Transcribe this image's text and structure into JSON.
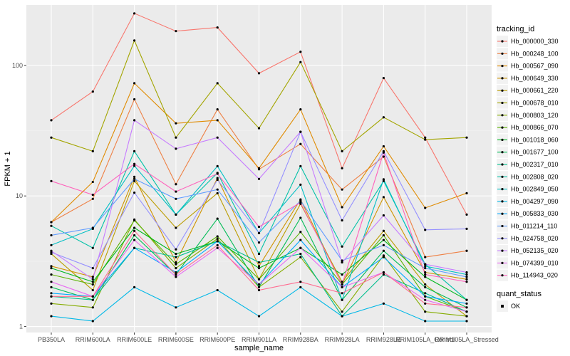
{
  "chart_data": {
    "type": "line",
    "xlabel": "sample_name",
    "ylabel": "FPKM + 1",
    "y_scale": "log10",
    "ylim": [
      0.9,
      290
    ],
    "y_ticks": [
      1,
      10,
      100
    ],
    "y_tick_labels": [
      "1",
      "10",
      "100"
    ],
    "categories": [
      "PB350LA",
      "RRIM600LA",
      "RRIM600LE",
      "RRIM600SE",
      "RRIM600PE",
      "RRIM901LA",
      "RRIM928BA",
      "RRIM928LA",
      "RRIM928LE",
      "RRIM105LA_Control",
      "RRIM105LA_Stressed"
    ],
    "legend_title": "tracking_id",
    "legend2_title": "quant_status",
    "legend2_entries": [
      "OK"
    ],
    "colors": {
      "panel_bg": "#ebebeb",
      "grid_major": "#ffffff",
      "grid_minor": "#f5f5f5",
      "point": "#000000"
    },
    "series": [
      {
        "name": "Hb_000000_330",
        "color": "#F8766D",
        "values": [
          38,
          63,
          250,
          183,
          195,
          87,
          127,
          16.3,
          80,
          28,
          7.2
        ]
      },
      {
        "name": "Hb_000248_100",
        "color": "#EE8044",
        "values": [
          6.3,
          9.5,
          55,
          12.3,
          46,
          16,
          25,
          11.2,
          20,
          3.4,
          3.8
        ]
      },
      {
        "name": "Hb_000567_090",
        "color": "#E08B00",
        "values": [
          6.3,
          12.8,
          73,
          36,
          38,
          16.3,
          46,
          8.2,
          24,
          8.1,
          10.5
        ]
      },
      {
        "name": "Hb_000649_330",
        "color": "#CF9400",
        "values": [
          2.9,
          2.4,
          14,
          3.1,
          13.7,
          2.9,
          9.4,
          2.1,
          9.8,
          2.6,
          2.3
        ]
      },
      {
        "name": "Hb_000661_220",
        "color": "#BB9D00",
        "values": [
          3.6,
          1.9,
          13,
          5.7,
          10.5,
          2.3,
          8.7,
          2.2,
          5.4,
          2.1,
          1.2
        ]
      },
      {
        "name": "Hb_000678_010",
        "color": "#A3A500",
        "values": [
          28,
          22,
          155,
          28,
          73,
          33,
          106,
          22,
          40,
          27,
          28
        ]
      },
      {
        "name": "Hb_000803_120",
        "color": "#85AD00",
        "values": [
          1.5,
          1.4,
          6.6,
          2.8,
          4.7,
          2.0,
          3.4,
          1.3,
          3.5,
          1.3,
          1.2
        ]
      },
      {
        "name": "Hb_000866_070",
        "color": "#5BB300",
        "values": [
          2.5,
          2.1,
          6.5,
          3.0,
          4.9,
          2.3,
          5.3,
          2.1,
          5.0,
          1.7,
          1.3
        ]
      },
      {
        "name": "Hb_001018_060",
        "color": "#00B81F",
        "values": [
          2.8,
          2.2,
          5.7,
          3.6,
          4.5,
          2.8,
          4.0,
          2.5,
          4.6,
          2.4,
          1.6
        ]
      },
      {
        "name": "Hb_001677_100",
        "color": "#00BC56",
        "values": [
          2.0,
          1.6,
          5.0,
          2.5,
          6.7,
          2.0,
          6.8,
          1.6,
          3.8,
          2.0,
          1.4
        ]
      },
      {
        "name": "Hb_002317_010",
        "color": "#00BE8D",
        "values": [
          1.7,
          1.6,
          4.0,
          3.4,
          4.5,
          3.1,
          3.6,
          1.2,
          2.5,
          1.8,
          1.3
        ]
      },
      {
        "name": "Hb_002808_020",
        "color": "#00C1A7",
        "values": [
          5.9,
          4.0,
          22,
          7.2,
          15,
          3.6,
          16.9,
          4.1,
          13,
          3.0,
          1.6
        ]
      },
      {
        "name": "Hb_002849_050",
        "color": "#00BFC4",
        "values": [
          4.2,
          5.6,
          17,
          7.2,
          16.9,
          5.2,
          12.2,
          1.6,
          13.4,
          2.9,
          2.5
        ]
      },
      {
        "name": "Hb_004297_090",
        "color": "#00B8E7",
        "values": [
          1.2,
          1.1,
          2.0,
          1.4,
          1.9,
          1.2,
          2.0,
          1.2,
          1.5,
          1.1,
          1.1
        ]
      },
      {
        "name": "Hb_005833_030",
        "color": "#00A9FF",
        "values": [
          1.8,
          1.7,
          4.0,
          2.6,
          4.5,
          2.1,
          4.6,
          2.0,
          3.4,
          1.7,
          1.5
        ]
      },
      {
        "name": "Hb_011214_110",
        "color": "#619CFF",
        "values": [
          5.0,
          5.7,
          13.5,
          9.5,
          11.2,
          4.4,
          9.2,
          3.2,
          4.2,
          2.8,
          2.4
        ]
      },
      {
        "name": "Hb_024758_020",
        "color": "#9590FF",
        "values": [
          3.7,
          2.8,
          10.6,
          3.9,
          13.3,
          5.2,
          31,
          6.5,
          22,
          5.5,
          5.6
        ]
      },
      {
        "name": "Hb_052135_020",
        "color": "#C77CFF",
        "values": [
          3.8,
          2.3,
          38,
          23,
          28,
          13.5,
          31,
          3.1,
          7.1,
          3.0,
          2.6
        ]
      },
      {
        "name": "Hb_074399_010",
        "color": "#E76BF3",
        "values": [
          2.2,
          1.7,
          4.6,
          2.4,
          4.0,
          2.1,
          4.0,
          2.0,
          2.6,
          1.6,
          1.3
        ]
      },
      {
        "name": "Hb_114943_020",
        "color": "#FF62BC",
        "values": [
          13,
          10.2,
          17.6,
          10.8,
          14.8,
          5.8,
          8.9,
          2.1,
          21.5,
          2.5,
          2.2
        ]
      },
      {
        "name": "",
        "color": "#FF6C91",
        "values": [
          1.7,
          1.7,
          5.4,
          2.5,
          4.2,
          1.9,
          2.2,
          1.8,
          2.6,
          1.5,
          1.4
        ]
      }
    ]
  }
}
